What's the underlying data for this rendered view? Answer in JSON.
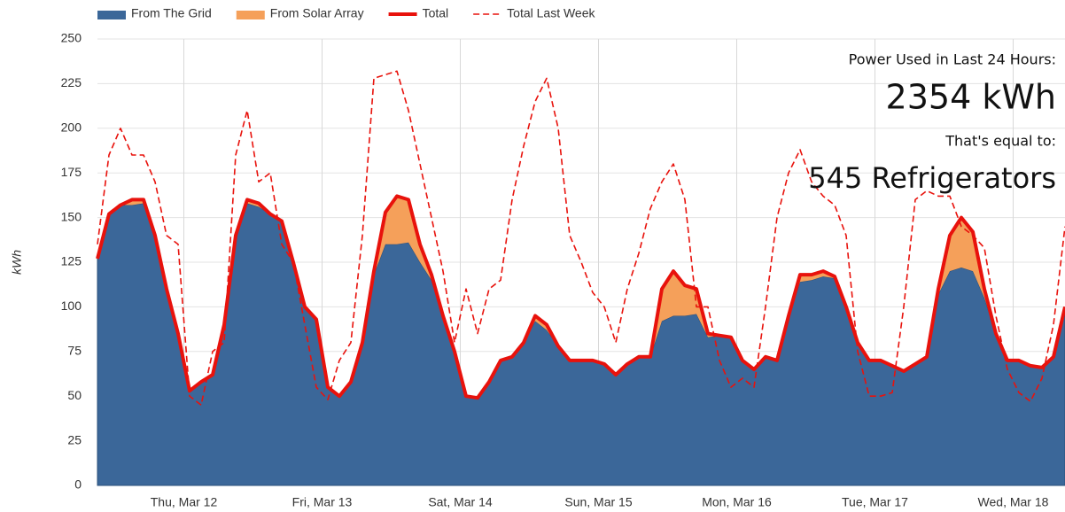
{
  "chart_data": {
    "type": "stacked_area",
    "y_label": "kWh",
    "annotations": [
      "Power Used in Last 24 Hours:",
      "2354 kWh",
      "That's equal to:",
      "545 Refrigerators"
    ],
    "x": [
      0,
      2,
      4,
      6,
      8,
      10,
      12,
      14,
      16,
      18,
      20,
      22,
      24,
      26,
      28,
      30,
      32,
      34,
      36,
      38,
      40,
      42,
      44,
      46,
      48,
      50,
      52,
      54,
      56,
      58,
      60,
      62,
      64,
      66,
      68,
      70,
      72,
      74,
      76,
      78,
      80,
      82,
      84,
      86,
      88,
      90,
      92,
      94,
      96,
      98,
      100,
      102,
      104,
      106,
      108,
      110,
      112,
      114,
      116,
      118,
      120,
      122,
      124,
      126,
      128,
      130,
      132,
      134,
      136,
      138,
      140,
      142,
      144,
      146,
      148,
      150,
      152,
      154,
      156,
      158,
      160,
      162,
      164,
      166,
      168
    ],
    "xlim": [
      0,
      168
    ],
    "xticks": [
      {
        "value": 15,
        "label": "Thu, Mar 12"
      },
      {
        "value": 39,
        "label": "Fri, Mar 13"
      },
      {
        "value": 63,
        "label": "Sat, Mar 14"
      },
      {
        "value": 87,
        "label": "Sun, Mar 15"
      },
      {
        "value": 111,
        "label": "Mon, Mar 16"
      },
      {
        "value": 135,
        "label": "Tue, Mar 17"
      },
      {
        "value": 159,
        "label": "Wed, Mar 18"
      }
    ],
    "ylim": [
      0,
      250
    ],
    "yticks": [
      0,
      25,
      50,
      75,
      100,
      125,
      150,
      175,
      200,
      225,
      250
    ],
    "grid": true,
    "series": [
      {
        "name": "From The Grid",
        "color": "#3b6799",
        "kind": "area",
        "values": [
          127,
          152,
          157,
          157,
          158,
          140,
          110,
          85,
          53,
          58,
          62,
          90,
          140,
          158,
          156,
          152,
          148,
          125,
          100,
          93,
          55,
          50,
          58,
          80,
          118,
          135,
          135,
          136,
          125,
          115,
          95,
          75,
          50,
          49,
          58,
          70,
          72,
          80,
          92,
          87,
          78,
          70,
          70,
          70,
          68,
          62,
          68,
          72,
          72,
          92,
          95,
          95,
          96,
          83,
          84,
          83,
          70,
          65,
          72,
          70,
          95,
          114,
          115,
          117,
          116,
          100,
          80,
          70,
          70,
          67,
          64,
          68,
          72,
          107,
          120,
          122,
          120,
          105,
          85,
          70,
          70,
          67,
          66,
          72,
          100
        ]
      },
      {
        "name": "From Solar Array",
        "color": "#f5a05a",
        "kind": "area",
        "values": [
          0,
          0,
          0,
          3,
          2,
          0,
          0,
          0,
          0,
          0,
          0,
          0,
          0,
          2,
          2,
          0,
          0,
          0,
          0,
          0,
          0,
          0,
          0,
          0,
          2,
          18,
          27,
          24,
          10,
          3,
          0,
          0,
          0,
          0,
          0,
          0,
          0,
          0,
          3,
          3,
          0,
          0,
          0,
          0,
          0,
          0,
          0,
          0,
          0,
          18,
          25,
          17,
          14,
          2,
          0,
          0,
          0,
          0,
          0,
          0,
          0,
          4,
          3,
          3,
          1,
          0,
          0,
          0,
          0,
          0,
          0,
          0,
          0,
          3,
          20,
          28,
          22,
          5,
          0,
          0,
          0,
          0,
          0,
          0,
          0
        ]
      },
      {
        "name": "Total",
        "color": "#e8120c",
        "kind": "line",
        "values": [
          127,
          152,
          157,
          160,
          160,
          140,
          110,
          85,
          53,
          58,
          62,
          90,
          140,
          160,
          158,
          152,
          148,
          125,
          100,
          93,
          55,
          50,
          58,
          80,
          120,
          153,
          162,
          160,
          135,
          118,
          95,
          75,
          50,
          49,
          58,
          70,
          72,
          80,
          95,
          90,
          78,
          70,
          70,
          70,
          68,
          62,
          68,
          72,
          72,
          110,
          120,
          112,
          110,
          85,
          84,
          83,
          70,
          65,
          72,
          70,
          95,
          118,
          118,
          120,
          117,
          100,
          80,
          70,
          70,
          67,
          64,
          68,
          72,
          110,
          140,
          150,
          142,
          110,
          85,
          70,
          70,
          67,
          66,
          72,
          100
        ]
      },
      {
        "name": "Total Last Week",
        "color": "#e8120c",
        "kind": "dashed",
        "values": [
          135,
          185,
          200,
          185,
          185,
          170,
          140,
          135,
          50,
          45,
          75,
          80,
          185,
          210,
          170,
          175,
          135,
          125,
          90,
          55,
          48,
          70,
          80,
          140,
          228,
          230,
          232,
          210,
          180,
          150,
          120,
          80,
          110,
          85,
          110,
          115,
          160,
          190,
          215,
          228,
          200,
          140,
          125,
          108,
          100,
          80,
          110,
          130,
          155,
          170,
          180,
          160,
          100,
          100,
          70,
          55,
          60,
          55,
          100,
          150,
          175,
          188,
          170,
          162,
          157,
          140,
          75,
          50,
          50,
          52,
          100,
          160,
          165,
          162,
          162,
          145,
          140,
          133,
          95,
          65,
          52,
          47,
          60,
          90,
          145
        ]
      }
    ]
  }
}
